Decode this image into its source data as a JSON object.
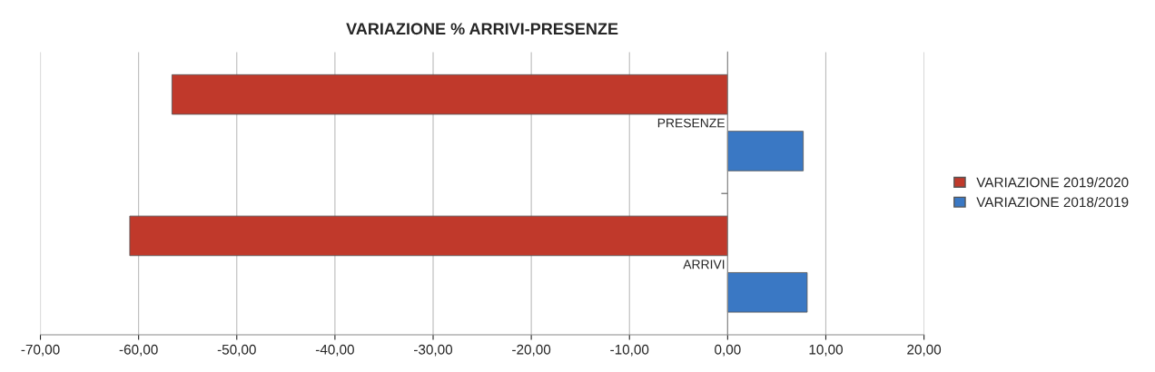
{
  "chart_data": {
    "type": "bar",
    "orientation": "horizontal",
    "title": "VARIAZIONE % ARRIVI-PRESENZE",
    "categories": [
      "PRESENZE",
      "ARRIVI"
    ],
    "series": [
      {
        "name": "VARIAZIONE 2019/2020",
        "color": "#c0392b",
        "values": [
          -56.6,
          -60.9
        ]
      },
      {
        "name": "VARIAZIONE 2018/2019",
        "color": "#3a78c4",
        "values": [
          7.7,
          8.1
        ]
      }
    ],
    "xlim": [
      -70,
      20
    ],
    "xticks": [
      {
        "value": -70,
        "label": "-70,00"
      },
      {
        "value": -60,
        "label": "-60,00"
      },
      {
        "value": -50,
        "label": "-50,00"
      },
      {
        "value": -40,
        "label": "-40,00"
      },
      {
        "value": -30,
        "label": "-30,00"
      },
      {
        "value": -20,
        "label": "-20,00"
      },
      {
        "value": -10,
        "label": "-10,00"
      },
      {
        "value": 0,
        "label": "0,00"
      },
      {
        "value": 10,
        "label": "10,00"
      },
      {
        "value": 20,
        "label": "20,00"
      }
    ],
    "grid": "x",
    "legend": "right"
  }
}
